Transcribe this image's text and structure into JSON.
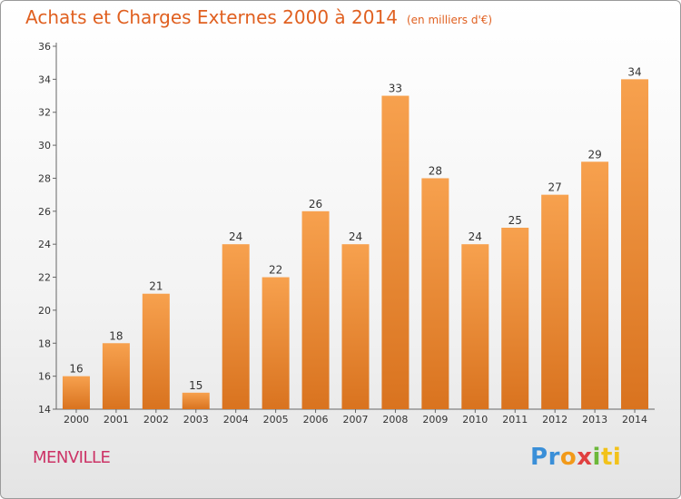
{
  "header": {
    "title": "Achats et Charges Externes 2000 à 2014",
    "unit": "(en milliers d'€)"
  },
  "footer": {
    "commune": "MENVILLE",
    "logo_letters": [
      "P",
      "r",
      "o",
      "x",
      "i",
      "ti"
    ]
  },
  "colors": {
    "bar_light": "#f7a14e",
    "bar_dark": "#d9731f",
    "title": "#e06020",
    "commune": "#cc3366"
  },
  "chart_data": {
    "type": "bar",
    "title": "Achats et Charges Externes 2000 à 2014",
    "subtitle": "(en milliers d'€)",
    "xlabel": "",
    "ylabel": "",
    "categories": [
      "2000",
      "2001",
      "2002",
      "2003",
      "2004",
      "2005",
      "2006",
      "2007",
      "2008",
      "2009",
      "2010",
      "2011",
      "2012",
      "2013",
      "2014"
    ],
    "values": [
      16,
      18,
      21,
      15,
      24,
      22,
      26,
      24,
      33,
      28,
      24,
      25,
      27,
      29,
      34
    ],
    "data_labels": [
      "16",
      "18",
      "21",
      "15",
      "24",
      "22",
      "26",
      "24",
      "33",
      "28",
      "24",
      "25",
      "27",
      "29",
      "34"
    ],
    "ylim": [
      14,
      36
    ],
    "yticks": [
      14,
      16,
      18,
      20,
      22,
      24,
      26,
      28,
      30,
      32,
      34,
      36
    ],
    "grid": false,
    "legend": "none"
  }
}
